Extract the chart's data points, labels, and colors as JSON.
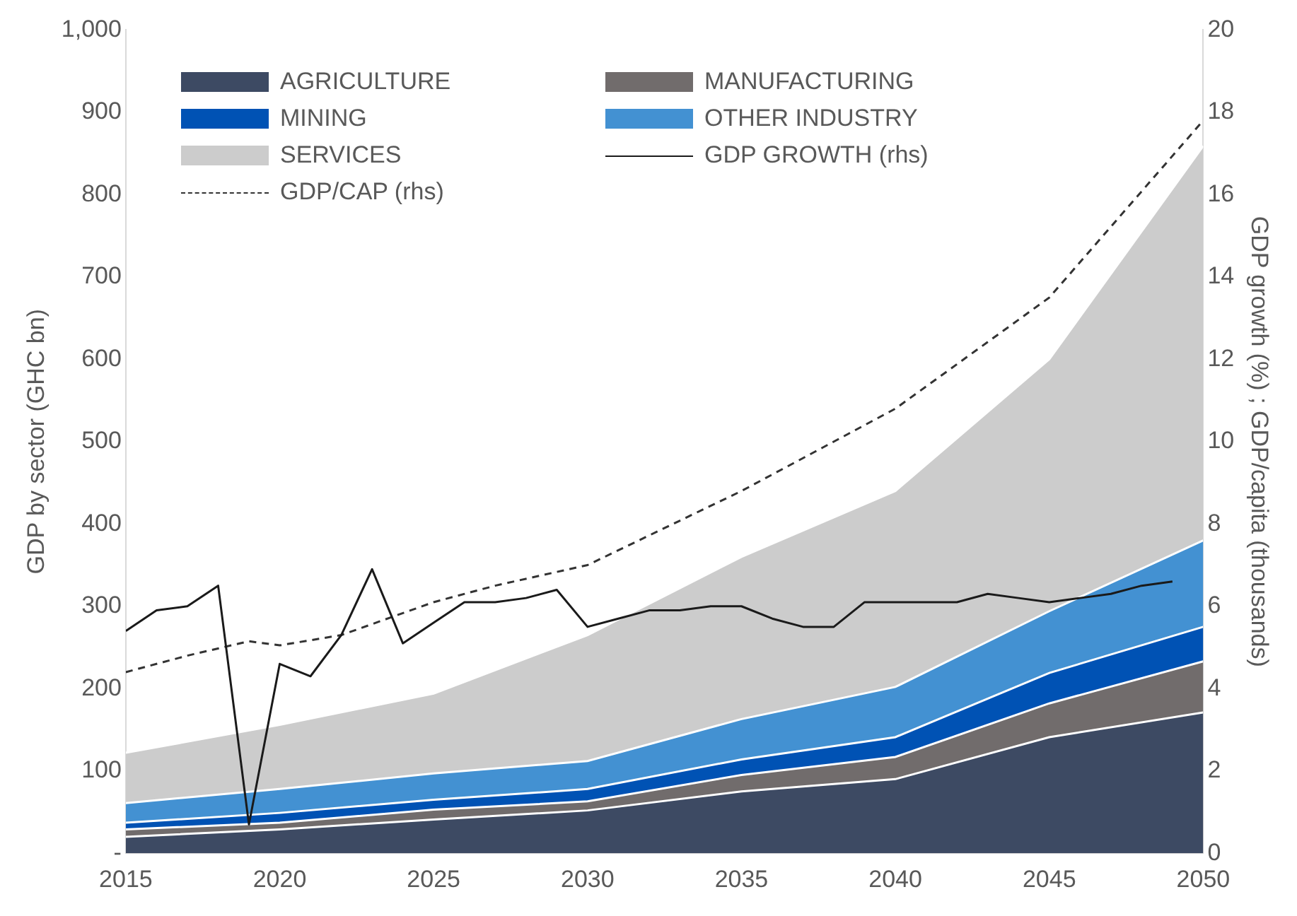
{
  "chart_data": {
    "type": "area",
    "stacked": true,
    "ylabel": "GDP by sector (GHC bn)",
    "y2label": "GDP growth (%) ; GDP/capita (thousands)",
    "x": [
      2015,
      2020,
      2025,
      2030,
      2035,
      2040,
      2045,
      2050
    ],
    "xlim": [
      2015,
      2050
    ],
    "xticks": [
      2015,
      2020,
      2025,
      2030,
      2035,
      2040,
      2045,
      2050
    ],
    "ylim": [
      0,
      1000
    ],
    "yticks": [
      {
        "value": 0,
        "label": "-"
      },
      100,
      200,
      300,
      400,
      500,
      600,
      700,
      800,
      900,
      {
        "value": 1000,
        "label": "1,000"
      }
    ],
    "y2lim": [
      0,
      20
    ],
    "y2ticks": [
      0,
      2,
      4,
      6,
      8,
      10,
      12,
      14,
      16,
      18,
      20
    ],
    "grid": false,
    "legend": "top left",
    "series": [
      {
        "name": "AGRICULTURE",
        "color": "#3d4a63",
        "values": [
          20,
          29,
          41,
          52,
          75,
          90,
          141,
          171
        ]
      },
      {
        "name": "MANUFACTURING",
        "color": "#716c6c",
        "values": [
          9,
          8,
          12,
          11,
          20,
          27,
          41,
          62
        ]
      },
      {
        "name": "MINING",
        "color": "#0052b4",
        "values": [
          8,
          12,
          12,
          15,
          19,
          24,
          37,
          42
        ]
      },
      {
        "name": "OTHER INDUSTRY",
        "color": "#4391d2",
        "values": [
          24,
          29,
          32,
          34,
          49,
          61,
          75,
          105
        ]
      },
      {
        "name": "SERVICES",
        "color": "#cccccc",
        "values": [
          61,
          78,
          97,
          153,
          197,
          238,
          306,
          479
        ]
      },
      {
        "name": "GDP GROWTH (rhs)",
        "type": "line",
        "axis": "y2",
        "color": "#1a1a1a",
        "line_style": "solid",
        "x": [
          2015,
          2016,
          2017,
          2018,
          2019,
          2020,
          2021,
          2022,
          2023,
          2024,
          2025,
          2026,
          2027,
          2028,
          2029,
          2030,
          2031,
          2032,
          2033,
          2034,
          2035,
          2036,
          2037,
          2038,
          2039,
          2040,
          2041,
          2042,
          2043,
          2044,
          2045,
          2046,
          2047,
          2048,
          2049
        ],
        "values": [
          5.4,
          5.9,
          6.0,
          6.5,
          0.7,
          4.6,
          4.3,
          5.3,
          6.9,
          5.1,
          5.6,
          6.1,
          6.1,
          6.2,
          6.4,
          5.5,
          5.7,
          5.9,
          5.9,
          6.0,
          6.0,
          5.7,
          5.5,
          5.5,
          6.1,
          6.1,
          6.1,
          6.1,
          6.3,
          6.2,
          6.1,
          6.2,
          6.3,
          6.5,
          6.6
        ]
      },
      {
        "name": "GDP/CAP (rhs)",
        "type": "line",
        "axis": "y2",
        "color": "#333333",
        "line_style": "dashed",
        "x": [
          2015,
          2017,
          2019,
          2020,
          2022,
          2025,
          2027,
          2030,
          2035,
          2040,
          2045,
          2050
        ],
        "values": [
          4.4,
          4.8,
          5.15,
          5.05,
          5.3,
          6.1,
          6.5,
          7.0,
          8.8,
          10.8,
          13.5,
          17.8
        ]
      }
    ]
  }
}
